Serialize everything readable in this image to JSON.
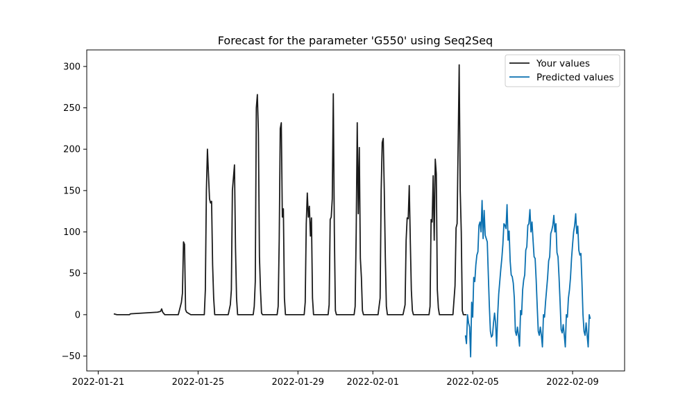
{
  "chart_data": {
    "type": "line",
    "title": "Forecast for the parameter 'G550' using Seq2Seq",
    "xlabel": "",
    "ylabel": "",
    "x_axis_type": "date",
    "xlim": [
      "2022-01-20T13:00",
      "2022-02-11T02:00"
    ],
    "ylim": [
      -68,
      320
    ],
    "x_ticks": [
      "2022-01-21",
      "2022-01-25",
      "2022-01-29",
      "2022-02-01",
      "2022-02-05",
      "2022-02-09"
    ],
    "y_ticks": [
      -50,
      0,
      50,
      100,
      150,
      200,
      250,
      300
    ],
    "grid": false,
    "legend_position": "top-right",
    "series": [
      {
        "name": "Your values",
        "color": "#1a1a1a",
        "points": [
          [
            "2022-01-21T15:00",
            1
          ],
          [
            "2022-01-21T18:00",
            0
          ],
          [
            "2022-01-22T00:00",
            0
          ],
          [
            "2022-01-22T06:00",
            0
          ],
          [
            "2022-01-22T07:00",
            1
          ],
          [
            "2022-01-23T09:00",
            3
          ],
          [
            "2022-01-23T12:00",
            4
          ],
          [
            "2022-01-23T13:00",
            7
          ],
          [
            "2022-01-23T14:00",
            3
          ],
          [
            "2022-01-23T16:00",
            0
          ],
          [
            "2022-01-24T05:00",
            0
          ],
          [
            "2022-01-24T08:00",
            15
          ],
          [
            "2022-01-24T09:00",
            26
          ],
          [
            "2022-01-24T10:00",
            88
          ],
          [
            "2022-01-24T11:00",
            85
          ],
          [
            "2022-01-24T12:00",
            6
          ],
          [
            "2022-01-24T13:00",
            3
          ],
          [
            "2022-01-24T17:00",
            0
          ],
          [
            "2022-01-25T06:00",
            0
          ],
          [
            "2022-01-25T07:00",
            30
          ],
          [
            "2022-01-25T08:00",
            150
          ],
          [
            "2022-01-25T09:00",
            200
          ],
          [
            "2022-01-25T10:00",
            170
          ],
          [
            "2022-01-25T11:00",
            140
          ],
          [
            "2022-01-25T12:00",
            135
          ],
          [
            "2022-01-25T13:00",
            137
          ],
          [
            "2022-01-25T14:00",
            60
          ],
          [
            "2022-01-25T15:00",
            20
          ],
          [
            "2022-01-25T16:00",
            0
          ],
          [
            "2022-01-26T05:00",
            0
          ],
          [
            "2022-01-26T07:00",
            12
          ],
          [
            "2022-01-26T08:00",
            30
          ],
          [
            "2022-01-26T09:00",
            150
          ],
          [
            "2022-01-26T11:00",
            181
          ],
          [
            "2022-01-26T12:00",
            80
          ],
          [
            "2022-01-26T13:00",
            20
          ],
          [
            "2022-01-26T14:00",
            0
          ],
          [
            "2022-01-27T05:00",
            0
          ],
          [
            "2022-01-27T06:00",
            10
          ],
          [
            "2022-01-27T07:00",
            40
          ],
          [
            "2022-01-27T08:00",
            250
          ],
          [
            "2022-01-27T09:00",
            266
          ],
          [
            "2022-01-27T10:00",
            220
          ],
          [
            "2022-01-27T11:00",
            70
          ],
          [
            "2022-01-27T12:00",
            30
          ],
          [
            "2022-01-27T13:00",
            2
          ],
          [
            "2022-01-27T14:00",
            0
          ],
          [
            "2022-01-28T04:00",
            0
          ],
          [
            "2022-01-28T05:00",
            10
          ],
          [
            "2022-01-28T06:00",
            90
          ],
          [
            "2022-01-28T07:00",
            225
          ],
          [
            "2022-01-28T08:00",
            232
          ],
          [
            "2022-01-28T09:00",
            118
          ],
          [
            "2022-01-28T10:00",
            128
          ],
          [
            "2022-01-28T11:00",
            20
          ],
          [
            "2022-01-28T12:00",
            0
          ],
          [
            "2022-01-29T06:00",
            0
          ],
          [
            "2022-01-29T07:00",
            15
          ],
          [
            "2022-01-29T08:00",
            110
          ],
          [
            "2022-01-29T09:00",
            147
          ],
          [
            "2022-01-29T10:00",
            118
          ],
          [
            "2022-01-29T11:00",
            131
          ],
          [
            "2022-01-29T12:00",
            95
          ],
          [
            "2022-01-29T13:00",
            117
          ],
          [
            "2022-01-29T14:00",
            20
          ],
          [
            "2022-01-29T15:00",
            0
          ],
          [
            "2022-01-30T05:00",
            0
          ],
          [
            "2022-01-30T06:00",
            12
          ],
          [
            "2022-01-30T07:00",
            115
          ],
          [
            "2022-01-30T08:00",
            118
          ],
          [
            "2022-01-30T09:00",
            140
          ],
          [
            "2022-01-30T10:00",
            267
          ],
          [
            "2022-01-30T11:00",
            100
          ],
          [
            "2022-01-30T12:00",
            5
          ],
          [
            "2022-01-30T13:00",
            0
          ],
          [
            "2022-01-31T06:00",
            0
          ],
          [
            "2022-01-31T07:00",
            10
          ],
          [
            "2022-01-31T08:00",
            100
          ],
          [
            "2022-01-31T09:00",
            232
          ],
          [
            "2022-01-31T10:00",
            122
          ],
          [
            "2022-01-31T11:00",
            202
          ],
          [
            "2022-01-31T12:00",
            68
          ],
          [
            "2022-01-31T13:00",
            45
          ],
          [
            "2022-01-31T14:00",
            5
          ],
          [
            "2022-01-31T15:00",
            0
          ],
          [
            "2022-02-01T05:00",
            0
          ],
          [
            "2022-02-01T07:00",
            20
          ],
          [
            "2022-02-01T08:00",
            150
          ],
          [
            "2022-02-01T09:00",
            208
          ],
          [
            "2022-02-01T10:00",
            213
          ],
          [
            "2022-02-01T11:00",
            150
          ],
          [
            "2022-02-01T12:00",
            70
          ],
          [
            "2022-02-01T13:00",
            10
          ],
          [
            "2022-02-01T14:00",
            0
          ],
          [
            "2022-02-02T05:00",
            0
          ],
          [
            "2022-02-02T07:00",
            12
          ],
          [
            "2022-02-02T08:00",
            90
          ],
          [
            "2022-02-02T09:00",
            117
          ],
          [
            "2022-02-02T10:00",
            116
          ],
          [
            "2022-02-02T11:00",
            156
          ],
          [
            "2022-02-02T12:00",
            90
          ],
          [
            "2022-02-02T13:00",
            30
          ],
          [
            "2022-02-02T14:00",
            5
          ],
          [
            "2022-02-02T15:00",
            0
          ],
          [
            "2022-02-03T06:00",
            0
          ],
          [
            "2022-02-03T07:00",
            10
          ],
          [
            "2022-02-03T08:00",
            115
          ],
          [
            "2022-02-03T09:00",
            112
          ],
          [
            "2022-02-03T10:00",
            168
          ],
          [
            "2022-02-03T11:00",
            90
          ],
          [
            "2022-02-03T12:00",
            188
          ],
          [
            "2022-02-03T13:00",
            170
          ],
          [
            "2022-02-03T14:00",
            30
          ],
          [
            "2022-02-03T15:00",
            8
          ],
          [
            "2022-02-03T16:00",
            0
          ],
          [
            "2022-02-04T05:00",
            0
          ],
          [
            "2022-02-04T07:00",
            35
          ],
          [
            "2022-02-04T08:00",
            105
          ],
          [
            "2022-02-04T09:00",
            110
          ],
          [
            "2022-02-04T10:00",
            205
          ],
          [
            "2022-02-04T11:00",
            302
          ],
          [
            "2022-02-04T12:00",
            150
          ],
          [
            "2022-02-04T13:00",
            100
          ],
          [
            "2022-02-04T14:00",
            5
          ],
          [
            "2022-02-04T15:00",
            0
          ],
          [
            "2022-02-04T18:00",
            0
          ]
        ]
      },
      {
        "name": "Predicted values",
        "color": "#0a70b0",
        "points": [
          [
            "2022-02-04T17:00",
            -25
          ],
          [
            "2022-02-04T18:00",
            -35
          ],
          [
            "2022-02-04T19:00",
            0
          ],
          [
            "2022-02-04T20:00",
            -10
          ],
          [
            "2022-02-04T21:00",
            -15
          ],
          [
            "2022-02-04T22:00",
            -51
          ],
          [
            "2022-02-04T23:00",
            15
          ],
          [
            "2022-02-05T00:00",
            -3
          ],
          [
            "2022-02-05T01:00",
            45
          ],
          [
            "2022-02-05T02:00",
            40
          ],
          [
            "2022-02-05T03:00",
            60
          ],
          [
            "2022-02-05T04:00",
            72
          ],
          [
            "2022-02-05T05:00",
            76
          ],
          [
            "2022-02-05T06:00",
            108
          ],
          [
            "2022-02-05T07:00",
            112
          ],
          [
            "2022-02-05T08:00",
            100
          ],
          [
            "2022-02-05T09:00",
            138
          ],
          [
            "2022-02-05T10:00",
            92
          ],
          [
            "2022-02-05T11:00",
            126
          ],
          [
            "2022-02-05T12:00",
            96
          ],
          [
            "2022-02-05T13:00",
            92
          ],
          [
            "2022-02-05T14:00",
            88
          ],
          [
            "2022-02-05T15:00",
            48
          ],
          [
            "2022-02-05T16:00",
            10
          ],
          [
            "2022-02-05T17:00",
            -20
          ],
          [
            "2022-02-05T18:00",
            -27
          ],
          [
            "2022-02-05T19:00",
            -25
          ],
          [
            "2022-02-05T20:00",
            -10
          ],
          [
            "2022-02-05T21:00",
            2
          ],
          [
            "2022-02-05T22:00",
            -10
          ],
          [
            "2022-02-05T23:00",
            -38
          ],
          [
            "2022-02-06T00:00",
            0
          ],
          [
            "2022-02-06T01:00",
            25
          ],
          [
            "2022-02-06T02:00",
            40
          ],
          [
            "2022-02-06T03:00",
            55
          ],
          [
            "2022-02-06T04:00",
            68
          ],
          [
            "2022-02-06T05:00",
            85
          ],
          [
            "2022-02-06T06:00",
            110
          ],
          [
            "2022-02-06T07:00",
            108
          ],
          [
            "2022-02-06T08:00",
            104
          ],
          [
            "2022-02-06T09:00",
            133
          ],
          [
            "2022-02-06T10:00",
            90
          ],
          [
            "2022-02-06T11:00",
            101
          ],
          [
            "2022-02-06T12:00",
            65
          ],
          [
            "2022-02-06T13:00",
            48
          ],
          [
            "2022-02-06T14:00",
            46
          ],
          [
            "2022-02-06T15:00",
            38
          ],
          [
            "2022-02-06T16:00",
            20
          ],
          [
            "2022-02-06T17:00",
            -20
          ],
          [
            "2022-02-06T18:00",
            -25
          ],
          [
            "2022-02-06T19:00",
            -15
          ],
          [
            "2022-02-06T20:00",
            -25
          ],
          [
            "2022-02-06T21:00",
            -38
          ],
          [
            "2022-02-06T22:00",
            5
          ],
          [
            "2022-02-06T23:00",
            0
          ],
          [
            "2022-02-07T00:00",
            30
          ],
          [
            "2022-02-07T01:00",
            42
          ],
          [
            "2022-02-07T02:00",
            48
          ],
          [
            "2022-02-07T03:00",
            78
          ],
          [
            "2022-02-07T04:00",
            82
          ],
          [
            "2022-02-07T05:00",
            108
          ],
          [
            "2022-02-07T06:00",
            110
          ],
          [
            "2022-02-07T07:00",
            127
          ],
          [
            "2022-02-07T08:00",
            100
          ],
          [
            "2022-02-07T09:00",
            112
          ],
          [
            "2022-02-07T10:00",
            90
          ],
          [
            "2022-02-07T11:00",
            70
          ],
          [
            "2022-02-07T12:00",
            68
          ],
          [
            "2022-02-07T13:00",
            42
          ],
          [
            "2022-02-07T14:00",
            10
          ],
          [
            "2022-02-07T15:00",
            -20
          ],
          [
            "2022-02-07T16:00",
            -25
          ],
          [
            "2022-02-07T17:00",
            -15
          ],
          [
            "2022-02-07T18:00",
            -25
          ],
          [
            "2022-02-07T19:00",
            -39
          ],
          [
            "2022-02-07T20:00",
            0
          ],
          [
            "2022-02-07T21:00",
            -3
          ],
          [
            "2022-02-07T22:00",
            15
          ],
          [
            "2022-02-07T23:00",
            30
          ],
          [
            "2022-02-08T00:00",
            45
          ],
          [
            "2022-02-08T01:00",
            65
          ],
          [
            "2022-02-08T02:00",
            70
          ],
          [
            "2022-02-08T03:00",
            98
          ],
          [
            "2022-02-08T04:00",
            102
          ],
          [
            "2022-02-08T05:00",
            108
          ],
          [
            "2022-02-08T06:00",
            120
          ],
          [
            "2022-02-08T07:00",
            100
          ],
          [
            "2022-02-08T08:00",
            110
          ],
          [
            "2022-02-08T09:00",
            75
          ],
          [
            "2022-02-08T10:00",
            70
          ],
          [
            "2022-02-08T11:00",
            45
          ],
          [
            "2022-02-08T12:00",
            15
          ],
          [
            "2022-02-08T13:00",
            -18
          ],
          [
            "2022-02-08T14:00",
            -22
          ],
          [
            "2022-02-08T15:00",
            -12
          ],
          [
            "2022-02-08T16:00",
            -25
          ],
          [
            "2022-02-08T17:00",
            -39
          ],
          [
            "2022-02-08T18:00",
            0
          ],
          [
            "2022-02-08T19:00",
            -3
          ],
          [
            "2022-02-08T20:00",
            20
          ],
          [
            "2022-02-08T21:00",
            30
          ],
          [
            "2022-02-08T22:00",
            45
          ],
          [
            "2022-02-08T23:00",
            68
          ],
          [
            "2022-02-09T00:00",
            85
          ],
          [
            "2022-02-09T01:00",
            100
          ],
          [
            "2022-02-09T02:00",
            108
          ],
          [
            "2022-02-09T03:00",
            122
          ],
          [
            "2022-02-09T04:00",
            98
          ],
          [
            "2022-02-09T05:00",
            107
          ],
          [
            "2022-02-09T06:00",
            78
          ],
          [
            "2022-02-09T07:00",
            72
          ],
          [
            "2022-02-09T08:00",
            74
          ],
          [
            "2022-02-09T09:00",
            40
          ],
          [
            "2022-02-09T10:00",
            0
          ],
          [
            "2022-02-09T11:00",
            -20
          ],
          [
            "2022-02-09T12:00",
            -25
          ],
          [
            "2022-02-09T13:00",
            -10
          ],
          [
            "2022-02-09T14:00",
            -25
          ],
          [
            "2022-02-09T15:00",
            -39
          ],
          [
            "2022-02-09T16:00",
            0
          ],
          [
            "2022-02-09T17:00",
            -5
          ]
        ]
      }
    ]
  }
}
